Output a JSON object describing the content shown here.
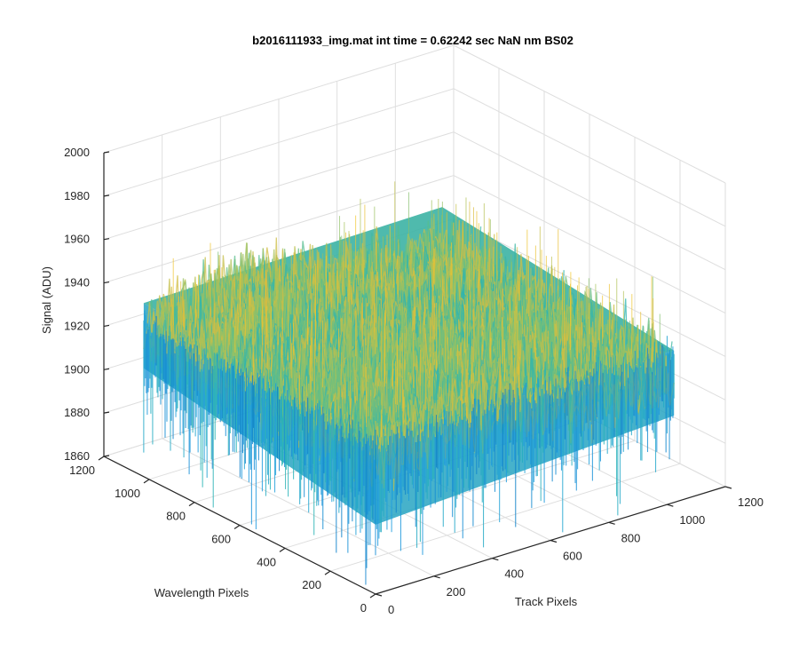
{
  "chart_data": {
    "type": "surface",
    "title": "b2016111933_img.mat int time = 0.62242 sec  NaN nm BS02",
    "xlabel": "Track Pixels",
    "ylabel": "Wavelength Pixels",
    "zlabel": "Signal (ADU)",
    "xlim": [
      0,
      1200
    ],
    "ylim": [
      0,
      1200
    ],
    "zlim": [
      1860,
      2000
    ],
    "xticks": [
      "0",
      "200",
      "400",
      "600",
      "800",
      "1000",
      "1200"
    ],
    "yticks": [
      "0",
      "200",
      "400",
      "600",
      "800",
      "1000",
      "1200"
    ],
    "zticks": [
      "1860",
      "1880",
      "1900",
      "1920",
      "1940",
      "1960",
      "1980",
      "2000"
    ],
    "data_extent": {
      "x": [
        0,
        1024
      ],
      "y": [
        0,
        1024
      ]
    },
    "mean_signal": 1922,
    "noise_range": [
      1870,
      1975
    ],
    "grid": true,
    "colormap": [
      "#0072bd",
      "#1e9be0",
      "#26b2b8",
      "#5cbe8a",
      "#a6c25a",
      "#e3bc3a",
      "#f5c82a"
    ]
  }
}
